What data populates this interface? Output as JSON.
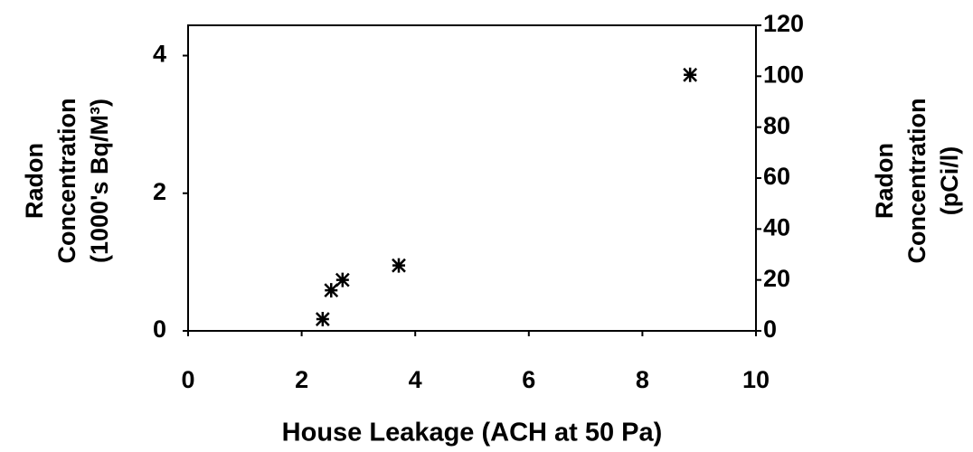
{
  "chart_data": {
    "type": "scatter",
    "xlabel": "House Leakage (ACH at 50 Pa)",
    "ylabel": [
      "Radon",
      "Concentration",
      "(1000's Bq/M³)"
    ],
    "y2label": [
      "Radon",
      "Concentration",
      "(pCi/l)"
    ],
    "x": [
      2.37,
      2.52,
      2.72,
      3.71,
      8.84
    ],
    "values": [
      0.17,
      0.59,
      0.74,
      0.95,
      3.72
    ],
    "color": "#000000",
    "xlim": [
      0,
      10
    ],
    "xticks": [
      0,
      2,
      4,
      6,
      8,
      10
    ],
    "ylim": [
      0,
      4.44
    ],
    "yticks": [
      0,
      2,
      4
    ],
    "y2lim": [
      0,
      120
    ],
    "y2ticks": [
      0,
      20,
      40,
      60,
      80,
      100,
      120
    ]
  }
}
